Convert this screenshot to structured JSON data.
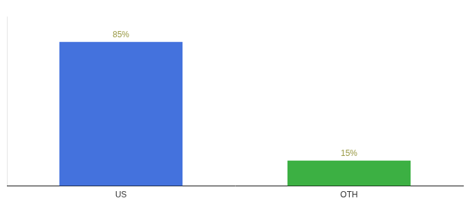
{
  "chart_data": {
    "type": "bar",
    "categories": [
      "US",
      "OTH"
    ],
    "values": [
      85,
      15
    ],
    "colors": [
      "#4472dd",
      "#3cb043"
    ],
    "value_labels": [
      "85%",
      "15%"
    ],
    "data_labels": true,
    "ylim": [
      0,
      100
    ],
    "tick_labels": "x",
    "grid": false
  }
}
